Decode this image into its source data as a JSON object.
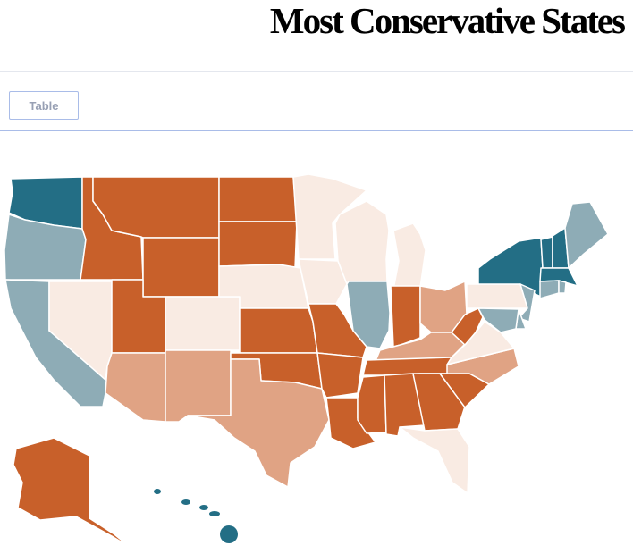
{
  "header": {
    "title": "Most Conservative States"
  },
  "toolbar": {
    "table_label": "Table"
  },
  "map": {
    "palette": {
      "1": "#236e85",
      "2": "#8eacb6",
      "3": "#f9ebe3",
      "4": "#e0a384",
      "5": "#c8602a"
    },
    "states": {
      "WA": 1,
      "NY": 1,
      "VT": 1,
      "NH": 1,
      "MA": 1,
      "HI": 1,
      "OR": 2,
      "CA": 2,
      "IL": 2,
      "ME": 2,
      "CT": 2,
      "RI": 2,
      "NJ": 2,
      "MD": 2,
      "DE": 2,
      "NV": 3,
      "CO": 3,
      "NE": 3,
      "MN": 3,
      "WI": 3,
      "MI": 3,
      "IA": 3,
      "PA": 3,
      "VA": 3,
      "FL": 3,
      "AZ": 4,
      "NM": 4,
      "TX": 4,
      "OH": 4,
      "KY": 4,
      "NC": 4,
      "ID": 5,
      "MT": 5,
      "WY": 5,
      "UT": 5,
      "ND": 5,
      "SD": 5,
      "KS": 5,
      "OK": 5,
      "MO": 5,
      "AR": 5,
      "LA": 5,
      "MS": 5,
      "AL": 5,
      "GA": 5,
      "SC": 5,
      "TN": 5,
      "IN": 5,
      "WV": 5,
      "AK": 5
    }
  }
}
